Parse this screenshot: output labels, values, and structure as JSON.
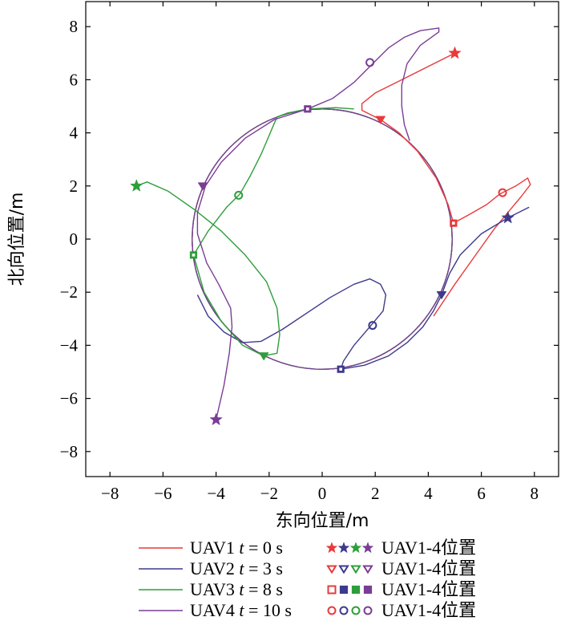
{
  "chart_data": {
    "type": "line",
    "xlabel": "东向位置/m",
    "ylabel": "北向位置/m",
    "xlim": [
      -9,
      9
    ],
    "ylim": [
      -9,
      9
    ],
    "xticks": [
      -8,
      -6,
      -4,
      -2,
      0,
      2,
      4,
      6,
      8
    ],
    "yticks": [
      -8,
      -6,
      -4,
      -2,
      0,
      2,
      4,
      6,
      8
    ],
    "xtick_labels": [
      "−8",
      "−6",
      "−4",
      "−2",
      "0",
      "2",
      "4",
      "6",
      "8"
    ],
    "ytick_labels": [
      "−8",
      "−6",
      "−4",
      "−2",
      "0",
      "2",
      "4",
      "6",
      "8"
    ],
    "grid": false,
    "circle": {
      "center": [
        0,
        0
      ],
      "radius": 4.9
    },
    "series": [
      {
        "name": "UAV1",
        "color": "#e83a3a",
        "points": [
          [
            5,
            7
          ],
          [
            3.2,
            6.1
          ],
          [
            2.0,
            5.5
          ],
          [
            1.5,
            5.1
          ],
          [
            1.5,
            4.85
          ],
          [
            1.9,
            4.65
          ],
          [
            2.2,
            4.5
          ],
          [
            2.9,
            4.0
          ],
          [
            3.6,
            3.3
          ],
          [
            4.3,
            2.3
          ],
          [
            4.75,
            1.3
          ],
          [
            4.95,
            0.6
          ],
          [
            5.5,
            0.9
          ],
          [
            6.2,
            1.3
          ],
          [
            6.7,
            1.7
          ],
          [
            7.3,
            2.0
          ],
          [
            7.75,
            2.3
          ],
          [
            7.85,
            2.05
          ],
          [
            7.5,
            1.6
          ],
          [
            7.0,
            1.0
          ],
          [
            6.5,
            0.4
          ],
          [
            6.0,
            -0.3
          ],
          [
            5.5,
            -1.0
          ],
          [
            5.0,
            -1.7
          ],
          [
            4.6,
            -2.3
          ],
          [
            4.2,
            -2.9
          ]
        ],
        "pos_t0": [
          5,
          7
        ],
        "pos_t3": [
          2.2,
          4.5
        ],
        "pos_t8": [
          4.95,
          0.6
        ],
        "pos_t10": [
          6.8,
          1.75
        ]
      },
      {
        "name": "UAV2",
        "color": "#3d3a8c",
        "points": [
          [
            7.8,
            1.2
          ],
          [
            7.0,
            0.8
          ],
          [
            6.0,
            0.2
          ],
          [
            5.2,
            -0.6
          ],
          [
            4.8,
            -1.3
          ],
          [
            4.5,
            -2.1
          ],
          [
            4.2,
            -2.7
          ],
          [
            3.8,
            -3.3
          ],
          [
            3.2,
            -3.9
          ],
          [
            2.5,
            -4.4
          ],
          [
            1.6,
            -4.75
          ],
          [
            0.7,
            -4.9
          ],
          [
            0.8,
            -4.6
          ],
          [
            1.2,
            -4.0
          ],
          [
            1.8,
            -3.3
          ],
          [
            2.3,
            -2.7
          ],
          [
            2.4,
            -2.1
          ],
          [
            2.2,
            -1.7
          ],
          [
            1.8,
            -1.5
          ],
          [
            1.2,
            -1.7
          ],
          [
            0.3,
            -2.2
          ],
          [
            -0.6,
            -2.8
          ],
          [
            -1.5,
            -3.4
          ],
          [
            -2.3,
            -3.85
          ],
          [
            -3.0,
            -3.9
          ],
          [
            -3.7,
            -3.5
          ],
          [
            -4.3,
            -2.9
          ],
          [
            -4.7,
            -2.1
          ]
        ],
        "pos_t0": [
          7,
          0.8
        ],
        "pos_t3": [
          4.5,
          -2.1
        ],
        "pos_t8": [
          0.7,
          -4.9
        ],
        "pos_t10": [
          1.9,
          -3.25
        ]
      },
      {
        "name": "UAV3",
        "color": "#2e9e3a",
        "points": [
          [
            -7,
            2
          ],
          [
            -6.6,
            2.15
          ],
          [
            -5.8,
            1.8
          ],
          [
            -4.8,
            1.1
          ],
          [
            -3.8,
            0.3
          ],
          [
            -2.9,
            -0.6
          ],
          [
            -2.1,
            -1.6
          ],
          [
            -1.7,
            -2.6
          ],
          [
            -1.6,
            -3.6
          ],
          [
            -1.7,
            -4.3
          ],
          [
            -2.2,
            -4.4
          ],
          [
            -3.0,
            -4.0
          ],
          [
            -3.8,
            -3.1
          ],
          [
            -4.45,
            -2.0
          ],
          [
            -4.85,
            -0.6
          ],
          [
            -4.3,
            0.3
          ],
          [
            -3.6,
            1.2
          ],
          [
            -3.1,
            1.7
          ],
          [
            -2.7,
            2.4
          ],
          [
            -2.3,
            3.2
          ],
          [
            -2.0,
            3.9
          ],
          [
            -1.7,
            4.6
          ],
          [
            -1.3,
            4.75
          ],
          [
            -0.55,
            4.9
          ],
          [
            0.5,
            4.95
          ],
          [
            1.2,
            4.9
          ]
        ],
        "pos_t0": [
          -7,
          2
        ],
        "pos_t3": [
          -2.2,
          -4.4
        ],
        "pos_t8": [
          -4.85,
          -0.6
        ],
        "pos_t10": [
          -3.15,
          1.65
        ]
      },
      {
        "name": "UAV4",
        "color": "#7a3d96",
        "points": [
          [
            -4,
            -6.8
          ],
          [
            -3.7,
            -5.5
          ],
          [
            -3.5,
            -4.3
          ],
          [
            -3.4,
            -3.3
          ],
          [
            -3.45,
            -2.6
          ],
          [
            -3.9,
            -1.7
          ],
          [
            -4.35,
            -0.9
          ],
          [
            -4.7,
            0.2
          ],
          [
            -4.7,
            1.0
          ],
          [
            -4.4,
            2.0
          ],
          [
            -3.8,
            2.9
          ],
          [
            -2.9,
            3.8
          ],
          [
            -1.8,
            4.5
          ],
          [
            -0.55,
            4.9
          ],
          [
            0.4,
            5.3
          ],
          [
            1.2,
            5.9
          ],
          [
            1.9,
            6.6
          ],
          [
            2.5,
            7.2
          ],
          [
            3.1,
            7.6
          ],
          [
            3.7,
            7.85
          ],
          [
            4.4,
            7.95
          ],
          [
            4.4,
            7.8
          ],
          [
            3.7,
            7.3
          ],
          [
            3.2,
            6.6
          ],
          [
            3.0,
            5.8
          ],
          [
            3.0,
            5.0
          ],
          [
            3.1,
            4.3
          ],
          [
            3.3,
            3.7
          ]
        ],
        "pos_t0": [
          -4,
          -6.8
        ],
        "pos_t3": [
          -4.5,
          2
        ],
        "pos_t8": [
          -0.55,
          4.9
        ],
        "pos_t10": [
          1.8,
          6.65
        ]
      }
    ],
    "legend": {
      "placement": "bottom",
      "rows": [
        {
          "line_label": "UAV1",
          "time_label": "t",
          "time_eq": "= 0 s",
          "marker": "star",
          "marker_label": "UAV1-4位置"
        },
        {
          "line_label": "UAV2",
          "time_label": "t",
          "time_eq": "= 3 s",
          "marker": "triangle-down",
          "marker_label": "UAV1-4位置"
        },
        {
          "line_label": "UAV3",
          "time_label": "t",
          "time_eq": "= 8 s",
          "marker": "square",
          "marker_label": "UAV1-4位置"
        },
        {
          "line_label": "UAV4",
          "time_label": "t",
          "time_eq": "= 10 s",
          "marker": "circle",
          "marker_label": "UAV1-4位置"
        }
      ]
    }
  }
}
